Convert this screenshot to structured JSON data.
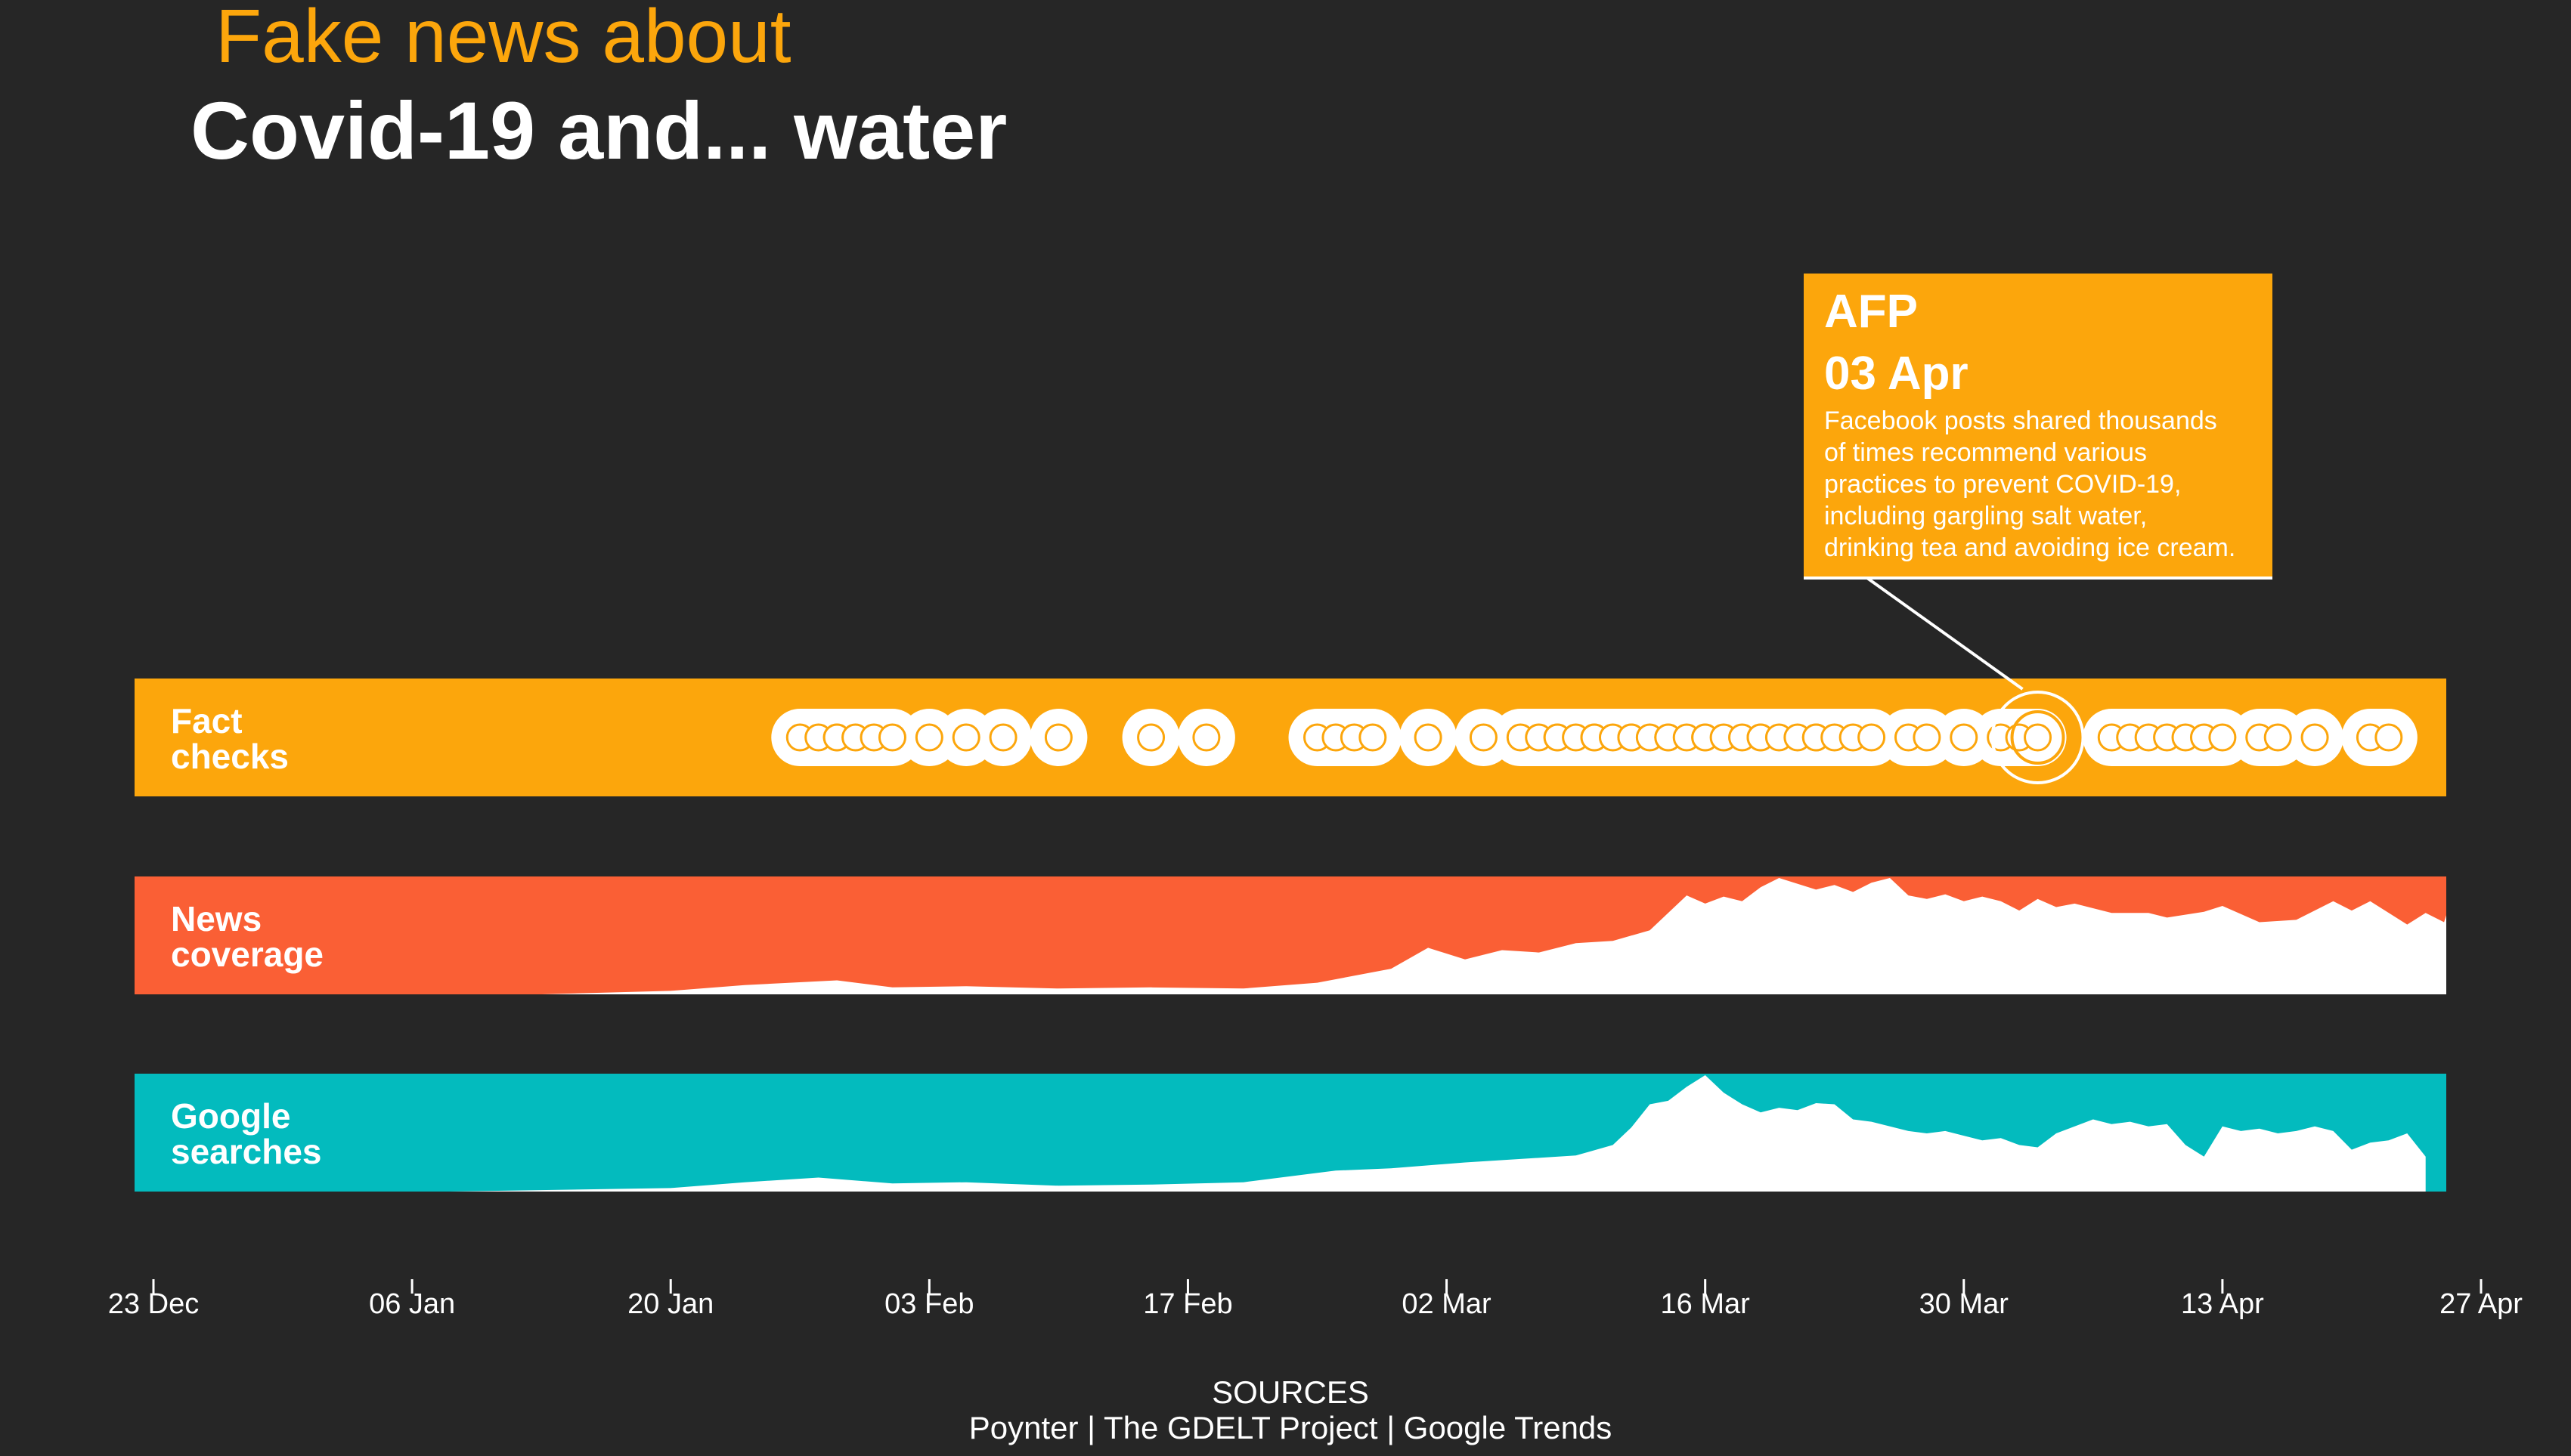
{
  "title": {
    "line1": "Fake news about",
    "line2": "Covid-19 and... water"
  },
  "colors": {
    "background": "#262626",
    "fact_checks": "#FCA60C",
    "news_coverage": "#FA5F35",
    "google_searches": "#03BBBE",
    "fill": "#FFFFFF"
  },
  "chart_data": {
    "type": "area",
    "x_axis": {
      "type": "date",
      "range": [
        "2019-12-23",
        "2020-04-27"
      ],
      "ticks": [
        "23 Dec",
        "06 Jan",
        "20 Jan",
        "03 Feb",
        "17 Feb",
        "02 Mar",
        "16 Mar",
        "30 Mar",
        "13 Apr",
        "27 Apr"
      ]
    },
    "grid": false,
    "rows": [
      {
        "label_line1": "Fact",
        "label_line2": "checks",
        "type": "scatter",
        "dates": [
          "2020-01-27",
          "2020-01-28",
          "2020-01-29",
          "2020-01-29",
          "2020-01-30",
          "2020-01-31",
          "2020-02-01",
          "2020-02-03",
          "2020-02-05",
          "2020-02-07",
          "2020-02-10",
          "2020-02-15",
          "2020-02-18",
          "2020-02-24",
          "2020-02-25",
          "2020-02-26",
          "2020-02-27",
          "2020-03-01",
          "2020-03-04",
          "2020-03-06",
          "2020-03-07",
          "2020-03-08",
          "2020-03-08",
          "2020-03-09",
          "2020-03-10",
          "2020-03-10",
          "2020-03-11",
          "2020-03-12",
          "2020-03-12",
          "2020-03-13",
          "2020-03-14",
          "2020-03-14",
          "2020-03-15",
          "2020-03-16",
          "2020-03-16",
          "2020-03-17",
          "2020-03-18",
          "2020-03-19",
          "2020-03-19",
          "2020-03-20",
          "2020-03-21",
          "2020-03-22",
          "2020-03-22",
          "2020-03-23",
          "2020-03-24",
          "2020-03-25",
          "2020-03-27",
          "2020-03-28",
          "2020-03-30",
          "2020-04-01",
          "2020-04-02",
          "2020-04-03",
          "2020-04-07",
          "2020-04-08",
          "2020-04-09",
          "2020-04-10",
          "2020-04-11",
          "2020-04-12",
          "2020-04-13",
          "2020-04-15",
          "2020-04-16",
          "2020-04-18",
          "2020-04-21",
          "2020-04-22"
        ],
        "highlight": "2020-04-03"
      },
      {
        "label_line1": "News",
        "label_line2": "coverage",
        "ylim": [
          0,
          100
        ],
        "x": [
          "2020-01-01",
          "2020-01-13",
          "2020-01-20",
          "2020-01-24",
          "2020-01-29",
          "2020-02-01",
          "2020-02-05",
          "2020-02-10",
          "2020-02-15",
          "2020-02-20",
          "2020-02-24",
          "2020-02-28",
          "2020-03-01",
          "2020-03-03",
          "2020-03-05",
          "2020-03-07",
          "2020-03-09",
          "2020-03-11",
          "2020-03-13",
          "2020-03-15",
          "2020-03-16",
          "2020-03-17",
          "2020-03-18",
          "2020-03-19",
          "2020-03-20",
          "2020-03-22",
          "2020-03-23",
          "2020-03-24",
          "2020-03-25",
          "2020-03-26",
          "2020-03-27",
          "2020-03-28",
          "2020-03-29",
          "2020-03-30",
          "2020-03-31",
          "2020-04-01",
          "2020-04-02",
          "2020-04-03",
          "2020-04-04",
          "2020-04-05",
          "2020-04-07",
          "2020-04-09",
          "2020-04-10",
          "2020-04-12",
          "2020-04-13",
          "2020-04-15",
          "2020-04-17",
          "2020-04-19",
          "2020-04-20",
          "2020-04-21",
          "2020-04-23",
          "2020-04-24",
          "2020-04-25",
          "2020-04-27"
        ],
        "values": [
          0,
          0,
          3,
          8,
          12,
          6,
          7,
          5,
          6,
          5,
          10,
          22,
          40,
          30,
          38,
          36,
          44,
          46,
          55,
          85,
          78,
          84,
          80,
          92,
          100,
          90,
          94,
          88,
          96,
          100,
          85,
          82,
          86,
          80,
          84,
          80,
          72,
          82,
          75,
          78,
          70,
          70,
          66,
          71,
          76,
          62,
          64,
          80,
          72,
          80,
          60,
          70,
          62,
          68
        ]
      },
      {
        "label_line1": "Google",
        "label_line2": "searches",
        "ylim": [
          0,
          100
        ],
        "x": [
          "2020-01-08",
          "2020-01-20",
          "2020-01-24",
          "2020-01-28",
          "2020-02-01",
          "2020-02-05",
          "2020-02-10",
          "2020-02-15",
          "2020-02-20",
          "2020-02-25",
          "2020-02-28",
          "2020-03-03",
          "2020-03-06",
          "2020-03-09",
          "2020-03-11",
          "2020-03-12",
          "2020-03-13",
          "2020-03-14",
          "2020-03-15",
          "2020-03-16",
          "2020-03-17",
          "2020-03-18",
          "2020-03-19",
          "2020-03-20",
          "2020-03-21",
          "2020-03-22",
          "2020-03-23",
          "2020-03-24",
          "2020-03-25",
          "2020-03-26",
          "2020-03-27",
          "2020-03-28",
          "2020-03-29",
          "2020-03-30",
          "2020-03-31",
          "2020-04-01",
          "2020-04-02",
          "2020-04-03",
          "2020-04-04",
          "2020-04-05",
          "2020-04-06",
          "2020-04-07",
          "2020-04-08",
          "2020-04-09",
          "2020-04-10",
          "2020-04-11",
          "2020-04-12",
          "2020-04-13",
          "2020-04-14",
          "2020-04-15",
          "2020-04-16",
          "2020-04-17",
          "2020-04-18",
          "2020-04-19",
          "2020-04-20",
          "2020-04-21",
          "2020-04-22",
          "2020-04-23",
          "2020-04-24"
        ],
        "values": [
          0,
          3,
          8,
          12,
          7,
          8,
          5,
          6,
          8,
          18,
          20,
          25,
          28,
          31,
          40,
          55,
          75,
          78,
          90,
          100,
          85,
          75,
          68,
          72,
          70,
          76,
          75,
          62,
          60,
          56,
          52,
          50,
          52,
          48,
          44,
          46,
          40,
          38,
          50,
          56,
          62,
          58,
          60,
          56,
          58,
          40,
          30,
          56,
          52,
          54,
          50,
          52,
          56,
          52,
          36,
          42,
          44,
          50,
          30
        ]
      }
    ]
  },
  "annotation": {
    "source": "AFP",
    "date_label": "03 Apr",
    "text_lines": [
      "Facebook posts shared thousands",
      "of times recommend various",
      "practices to prevent COVID-19,",
      "including gargling salt water,",
      "drinking tea and avoiding ice cream."
    ]
  },
  "sources": {
    "heading": "SOURCES",
    "line": "Poynter | The GDELT Project | Google Trends"
  }
}
